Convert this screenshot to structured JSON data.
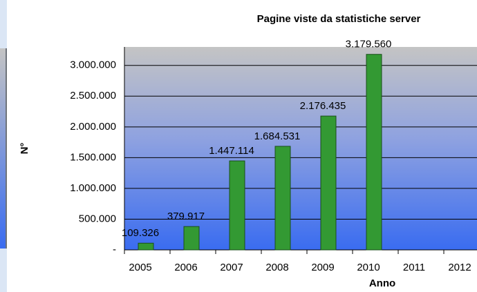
{
  "chart_data": {
    "type": "bar",
    "title": "Pagine viste da statistiche server",
    "x_label": "Anno",
    "y_label": "N°",
    "categories": [
      "2005",
      "2006",
      "2007",
      "2008",
      "2009",
      "2010",
      "2011",
      "2012"
    ],
    "values": [
      109326,
      379917,
      1447114,
      1684531,
      2176435,
      3179560,
      null,
      null
    ],
    "value_labels": [
      "109.326",
      "379.917",
      "1.447.114",
      "1.684.531",
      "2.176.435",
      "3.179.560",
      null,
      null
    ],
    "color": "#339933",
    "ylim": [
      0,
      3300000
    ],
    "yticks": [
      {
        "value": 0,
        "label": "-"
      },
      {
        "value": 500000,
        "label": "500.000"
      },
      {
        "value": 1000000,
        "label": "1.000.000"
      },
      {
        "value": 1500000,
        "label": "1.500.000"
      },
      {
        "value": 2000000,
        "label": "2.000.000"
      },
      {
        "value": 2500000,
        "label": "2.500.000"
      },
      {
        "value": 3000000,
        "label": "3.000.000"
      }
    ],
    "grid": true
  }
}
